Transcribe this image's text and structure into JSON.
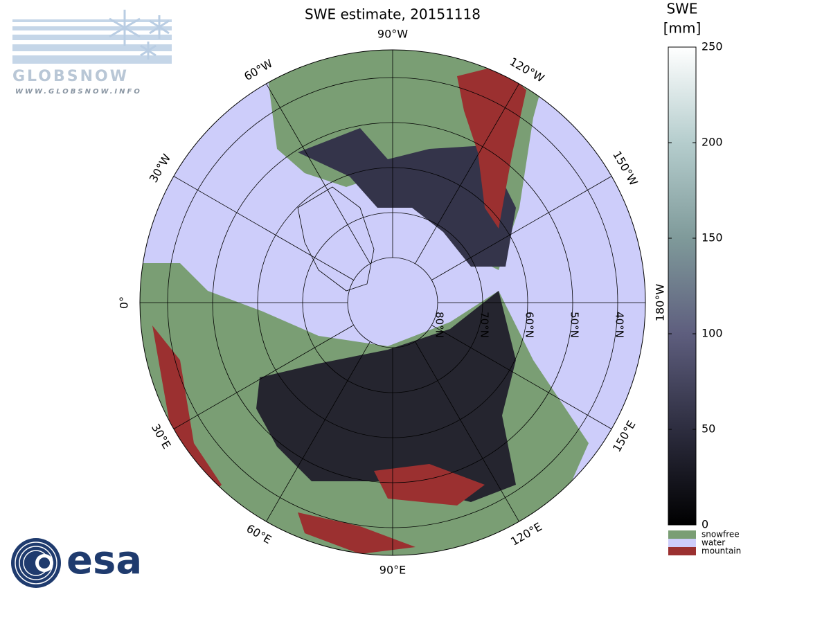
{
  "title": "SWE estimate, 20151118",
  "colorbar": {
    "label_lines": [
      "SWE",
      "[mm]"
    ],
    "lim": [
      0,
      250
    ],
    "ticks": [
      0,
      50,
      100,
      150,
      200,
      250
    ]
  },
  "legend": [
    {
      "name": "snowfree",
      "color": "#7a9e74"
    },
    {
      "name": "water",
      "color": "#cdcdfa"
    },
    {
      "name": "mountain",
      "color": "#9b3030"
    }
  ],
  "meridian_labels": [
    {
      "lon": 0,
      "label": "0°"
    },
    {
      "lon": 30,
      "label": "30°E"
    },
    {
      "lon": 60,
      "label": "60°E"
    },
    {
      "lon": 90,
      "label": "90°E"
    },
    {
      "lon": 120,
      "label": "120°E"
    },
    {
      "lon": 150,
      "label": "150°E"
    },
    {
      "lon": -180,
      "label": "180°W"
    },
    {
      "lon": -150,
      "label": "150°W"
    },
    {
      "lon": -120,
      "label": "120°W"
    },
    {
      "lon": -90,
      "label": "90°W"
    },
    {
      "lon": -60,
      "label": "60°W"
    },
    {
      "lon": -30,
      "label": "30°W"
    }
  ],
  "parallel_labels": [
    {
      "lat": 80,
      "label": "80°N"
    },
    {
      "lat": 70,
      "label": "70°N"
    },
    {
      "lat": 60,
      "label": "60°N"
    },
    {
      "lat": 50,
      "label": "50°N"
    },
    {
      "lat": 40,
      "label": "40°N"
    }
  ],
  "logos": {
    "globsnow": "GLOBSNOW",
    "globsnow_url": "WWW.GLOBSNOW.INFO",
    "esa": "esa"
  }
}
